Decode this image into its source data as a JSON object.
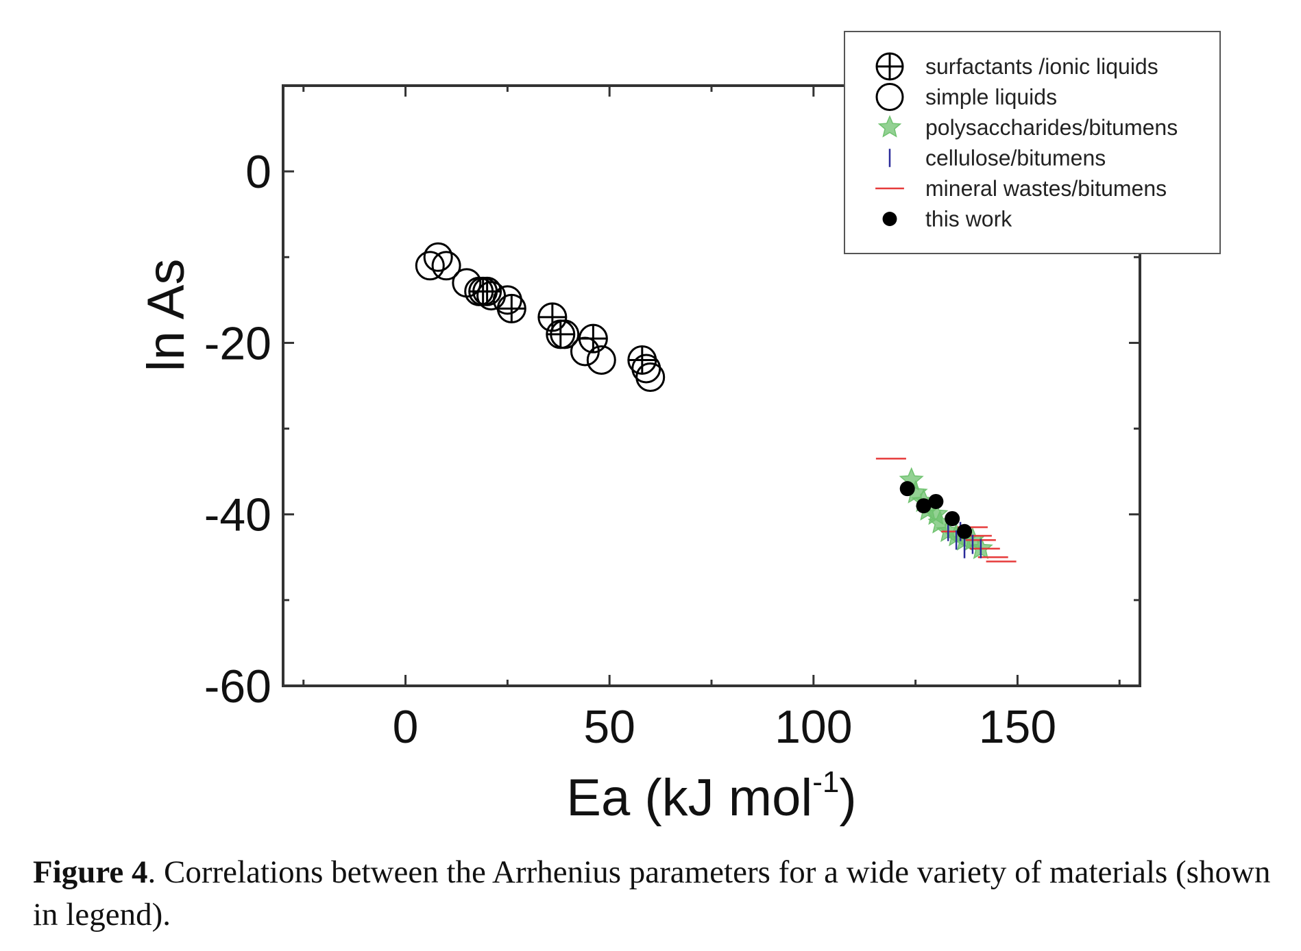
{
  "chart_data": {
    "type": "scatter",
    "xlabel": "Ea (kJ mol",
    "xlabel_sup": "-1",
    "xlabel_close": ")",
    "ylabel": "ln As",
    "xlim": [
      -30,
      180
    ],
    "ylim": [
      -60,
      10
    ],
    "xticks": [
      0,
      50,
      100,
      150
    ],
    "yticks": [
      0,
      -20,
      -40,
      -60
    ],
    "legend_position": "top-right",
    "series": [
      {
        "name": "surfactants /ionic liquids",
        "marker": "circle-plus",
        "color": "#000000",
        "points": [
          [
            19,
            -14
          ],
          [
            20,
            -14
          ],
          [
            26,
            -16
          ],
          [
            36,
            -17
          ],
          [
            38,
            -19
          ],
          [
            46,
            -19.5
          ],
          [
            58,
            -22
          ]
        ]
      },
      {
        "name": "simple liquids",
        "marker": "open-circle",
        "color": "#000000",
        "points": [
          [
            6,
            -11
          ],
          [
            8,
            -10
          ],
          [
            10,
            -11
          ],
          [
            15,
            -13
          ],
          [
            18,
            -14
          ],
          [
            21,
            -14.5
          ],
          [
            25,
            -15
          ],
          [
            39,
            -19
          ],
          [
            44,
            -21
          ],
          [
            48,
            -22
          ],
          [
            59,
            -23
          ],
          [
            60,
            -24
          ]
        ]
      },
      {
        "name": "polysaccharides/bitumens",
        "marker": "star",
        "color": "#6fc26f",
        "points": [
          [
            124,
            -36
          ],
          [
            125,
            -37.5
          ],
          [
            127,
            -38.5
          ],
          [
            128,
            -39.5
          ],
          [
            130,
            -40
          ],
          [
            131,
            -41
          ],
          [
            133,
            -42
          ],
          [
            135,
            -42.5
          ],
          [
            137,
            -43
          ],
          [
            139,
            -43
          ],
          [
            141,
            -44
          ]
        ]
      },
      {
        "name": "cellulose/bitumens",
        "marker": "vline",
        "color": "#2b2b9a",
        "points": [
          [
            133,
            -42
          ],
          [
            135,
            -43
          ],
          [
            136,
            -42
          ],
          [
            137,
            -44
          ],
          [
            139,
            -43.5
          ],
          [
            141,
            -44
          ]
        ]
      },
      {
        "name": "mineral wastes/bitumens",
        "marker": "hline",
        "color": "#e63a3a",
        "points": [
          [
            119,
            -33.5
          ],
          [
            139,
            -41.5
          ],
          [
            140,
            -42.5
          ],
          [
            141,
            -43
          ],
          [
            142,
            -44
          ],
          [
            144,
            -45
          ],
          [
            146,
            -45.5
          ],
          [
            135,
            -42
          ]
        ]
      },
      {
        "name": "this work",
        "marker": "filled-circle",
        "color": "#000000",
        "points": [
          [
            123,
            -37
          ],
          [
            127,
            -39
          ],
          [
            130,
            -38.5
          ],
          [
            134,
            -40.5
          ],
          [
            137,
            -42
          ]
        ]
      }
    ]
  },
  "caption": {
    "label": "Figure 4",
    "text": ". Correlations between the Arrhenius parameters for a wide variety of materials (shown in legend)."
  }
}
